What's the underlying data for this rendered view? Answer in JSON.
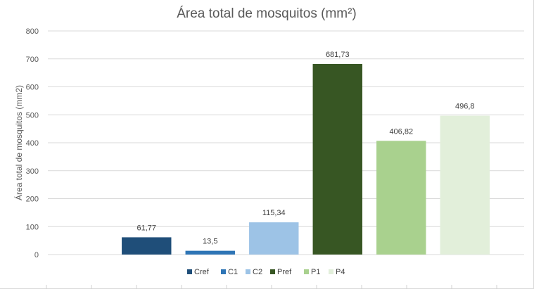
{
  "chart_data": {
    "type": "bar",
    "title": "Área total de mosquitos (mm²)",
    "xlabel": "",
    "ylabel": "Área total de mosquitos (mm2)",
    "ylim": [
      0,
      800
    ],
    "yticks": [
      0,
      100,
      200,
      300,
      400,
      500,
      600,
      700,
      800
    ],
    "ytick_labels": [
      "0",
      "100",
      "200",
      "300",
      "400",
      "500",
      "600",
      "700",
      "800"
    ],
    "grid": true,
    "legend_position": "bottom",
    "categories": [
      "Cref",
      "C1",
      "C2",
      "Pref",
      "P1",
      "P4"
    ],
    "values": [
      61.77,
      13.5,
      115.34,
      681.73,
      406.82,
      496.8
    ],
    "data_labels": [
      "61,77",
      "13,5",
      "115,34",
      "681,73",
      "406,82",
      "496,8"
    ],
    "colors": [
      "#1f4e79",
      "#2e75b6",
      "#9dc3e6",
      "#375623",
      "#a9d18e",
      "#e2efda"
    ]
  }
}
